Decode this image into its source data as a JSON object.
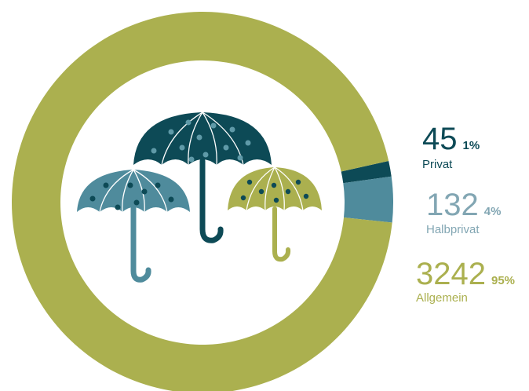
{
  "chart_data": {
    "type": "donut",
    "categories": [
      "Privat",
      "Halbprivat",
      "Allgemein"
    ],
    "values": [
      45,
      132,
      3242
    ],
    "share_labels": [
      "1%",
      "4%",
      "95%"
    ],
    "colors": [
      "#0d4a56",
      "#4f8b9c",
      "#abb04f"
    ]
  }
}
